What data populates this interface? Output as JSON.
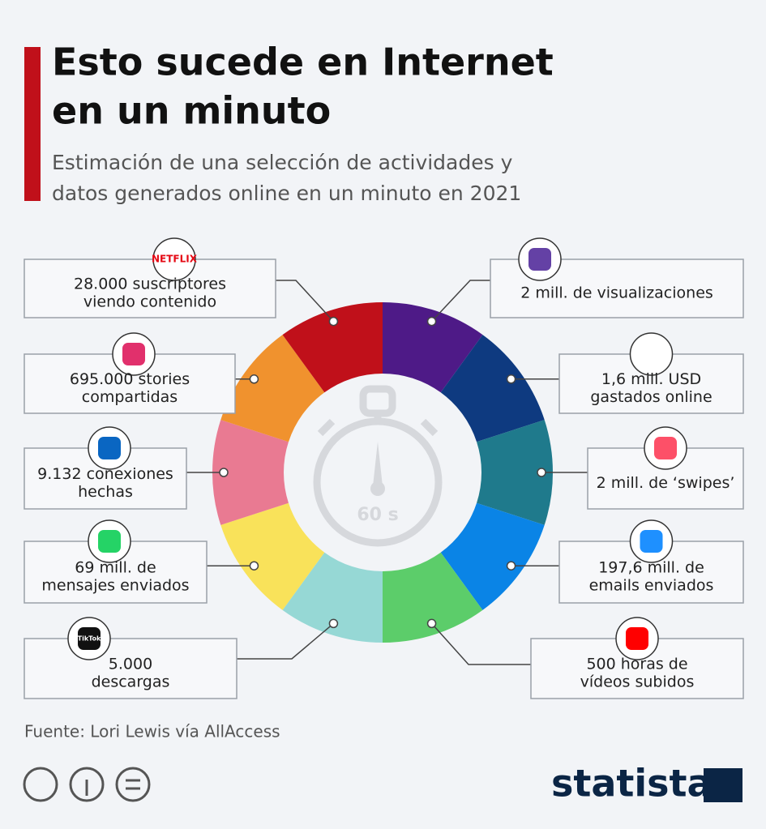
{
  "header": {
    "title_lines": [
      "Esto sucede en Internet",
      "en un minuto"
    ],
    "subtitle_lines": [
      "Estimación de una selección de actividades y",
      "datos generados online en un minuto en 2021"
    ]
  },
  "timer": {
    "label": "60 s"
  },
  "items": [
    {
      "lines": [
        "28.000 suscriptores",
        "viendo contenido"
      ],
      "logo": "NETFLIX"
    },
    {
      "lines": [
        "695.000 stories",
        "compartidas"
      ]
    },
    {
      "lines": [
        "9.132 conexiones",
        "hechas"
      ]
    },
    {
      "lines": [
        "69 mill. de",
        "mensajes enviados"
      ]
    },
    {
      "lines": [
        "5.000",
        "descargas"
      ],
      "logo": "TikTok"
    },
    {
      "lines": [
        "2 mill. de visualizaciones"
      ]
    },
    {
      "lines": [
        "1,6 mill. USD",
        "gastados online"
      ]
    },
    {
      "lines": [
        "2 mill. de ‘swipes’"
      ]
    },
    {
      "lines": [
        "197,6 mill. de",
        "emails enviados"
      ]
    },
    {
      "lines": [
        "500 horas de",
        "vídeos subidos"
      ]
    }
  ],
  "footer": {
    "source": "Fuente: Lori Lewis vía AllAccess",
    "brand": "statista"
  }
}
